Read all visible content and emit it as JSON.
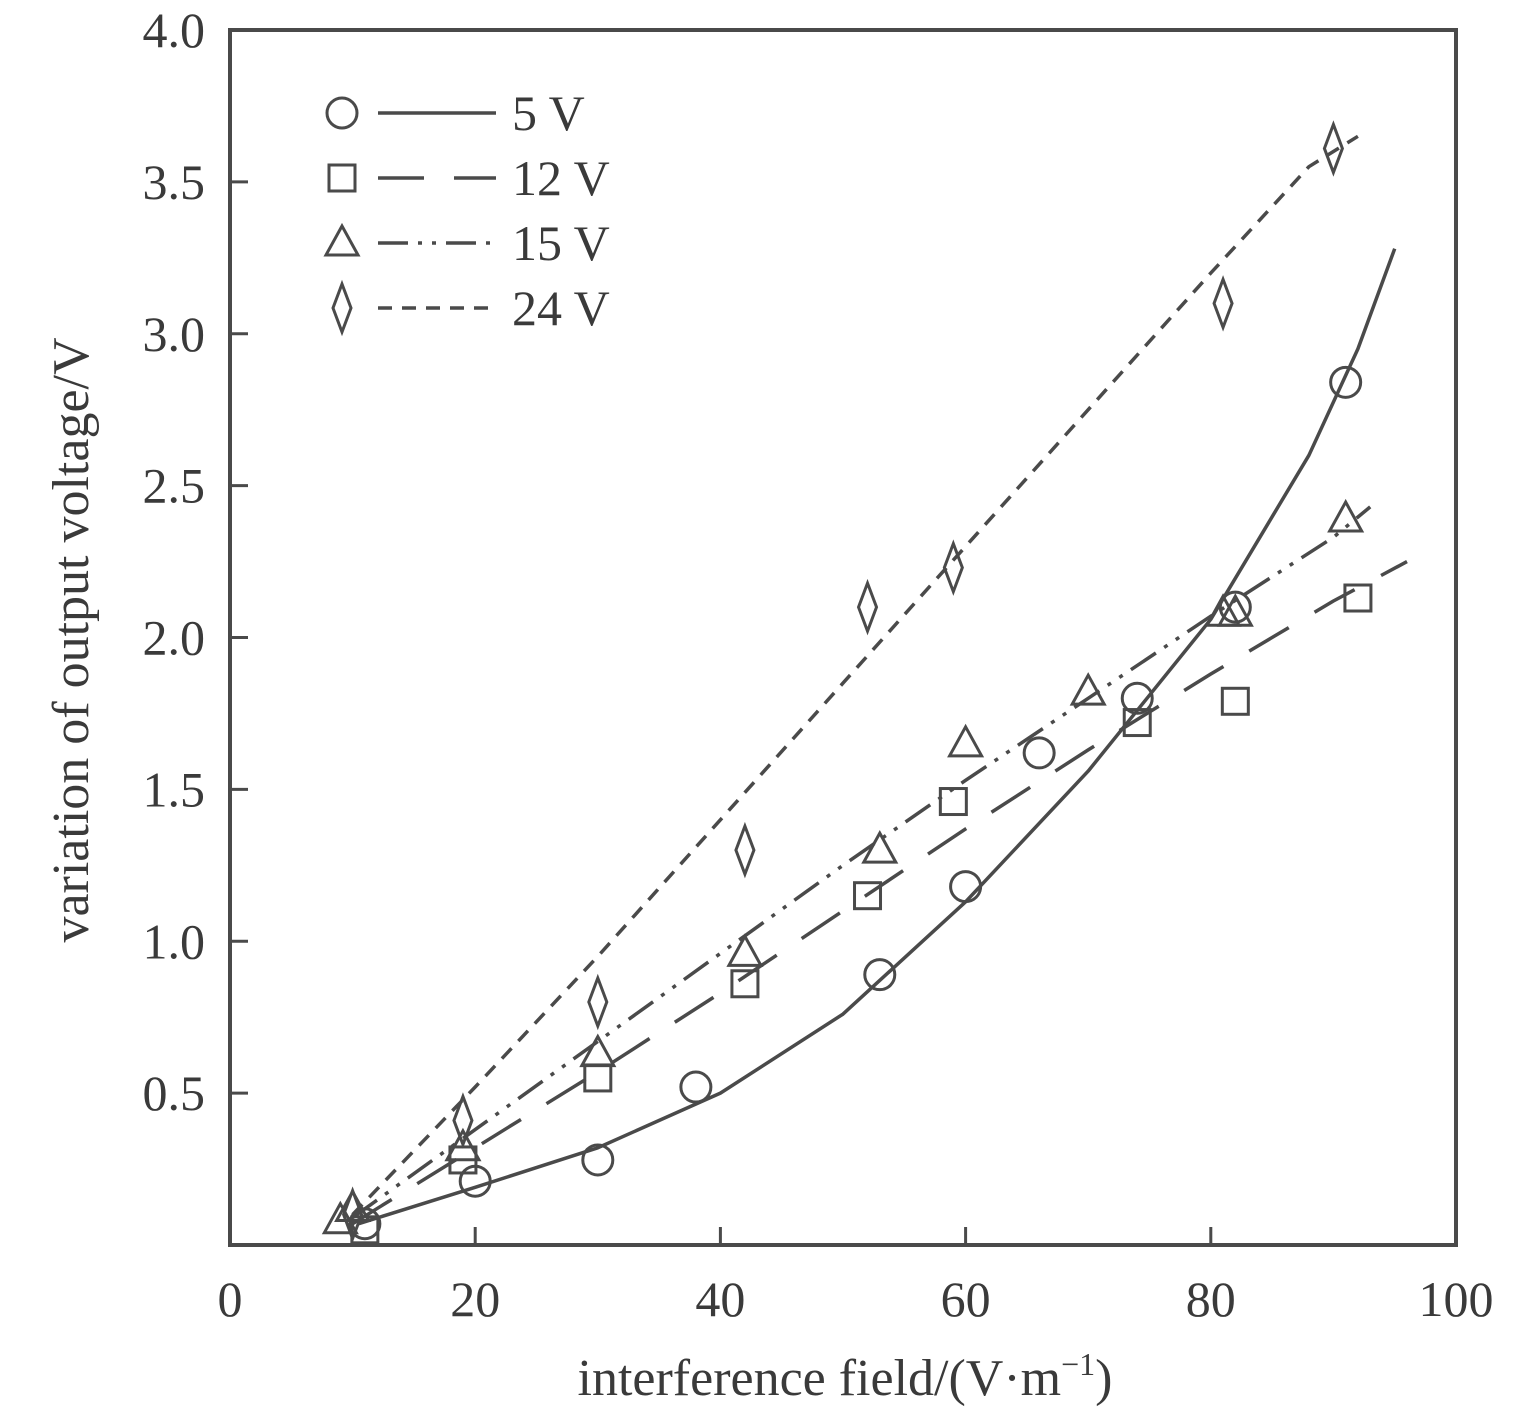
{
  "chart_data": {
    "type": "scatter",
    "xlabel": "interference field/(V·m",
    "xlabel_sup": "−1",
    "xlabel_tail": ")",
    "ylabel": "variation of output voltage/V",
    "xlim": [
      0,
      100
    ],
    "ylim": [
      0,
      4.0
    ],
    "x_ticks": [
      0,
      20,
      40,
      60,
      80,
      100
    ],
    "x_tick_labels": [
      "0",
      "20",
      "40",
      "60",
      "80",
      "100"
    ],
    "y_ticks": [
      0.5,
      1.0,
      1.5,
      2.0,
      2.5,
      3.0,
      3.5,
      4.0
    ],
    "y_tick_labels": [
      "0.5",
      "1.0",
      "1.5",
      "2.0",
      "2.5",
      "3.0",
      "3.5",
      "4.0"
    ],
    "grid": false,
    "legend_position": "top-left",
    "series": [
      {
        "name": "5 V",
        "marker": "circle",
        "line_style": "solid",
        "points": [
          [
            11,
            0.07
          ],
          [
            20,
            0.21
          ],
          [
            30,
            0.28
          ],
          [
            38,
            0.52
          ],
          [
            53,
            0.89
          ],
          [
            60,
            1.18
          ],
          [
            66,
            1.62
          ],
          [
            74,
            1.8
          ],
          [
            82,
            2.1
          ],
          [
            91,
            2.84
          ]
        ],
        "fit": [
          [
            10.5,
            0.07
          ],
          [
            20,
            0.19
          ],
          [
            30,
            0.32
          ],
          [
            40,
            0.5
          ],
          [
            50,
            0.76
          ],
          [
            60,
            1.13
          ],
          [
            70,
            1.56
          ],
          [
            80,
            2.06
          ],
          [
            88,
            2.6
          ],
          [
            92,
            2.95
          ],
          [
            95,
            3.28
          ]
        ]
      },
      {
        "name": "12 V",
        "marker": "square",
        "line_style": "dashed",
        "points": [
          [
            11,
            0.05
          ],
          [
            19,
            0.28
          ],
          [
            30,
            0.55
          ],
          [
            42,
            0.86
          ],
          [
            52,
            1.15
          ],
          [
            59,
            1.46
          ],
          [
            74,
            1.72
          ],
          [
            82,
            1.79
          ],
          [
            92,
            2.13
          ]
        ],
        "fit": [
          [
            10,
            0.07
          ],
          [
            20,
            0.32
          ],
          [
            30,
            0.57
          ],
          [
            40,
            0.83
          ],
          [
            50,
            1.1
          ],
          [
            60,
            1.37
          ],
          [
            70,
            1.63
          ],
          [
            80,
            1.88
          ],
          [
            90,
            2.12
          ],
          [
            96,
            2.25
          ]
        ]
      },
      {
        "name": "15 V",
        "marker": "triangle",
        "line_style": "dashdotdot",
        "points": [
          [
            9,
            0.08
          ],
          [
            10,
            0.12
          ],
          [
            19,
            0.32
          ],
          [
            30,
            0.63
          ],
          [
            42,
            0.96
          ],
          [
            53,
            1.3
          ],
          [
            60,
            1.65
          ],
          [
            70,
            1.82
          ],
          [
            81,
            2.08
          ],
          [
            82,
            2.08
          ],
          [
            91,
            2.39
          ]
        ],
        "fit": [
          [
            10,
            0.09
          ],
          [
            20,
            0.38
          ],
          [
            30,
            0.67
          ],
          [
            40,
            0.96
          ],
          [
            50,
            1.25
          ],
          [
            60,
            1.53
          ],
          [
            70,
            1.8
          ],
          [
            80,
            2.07
          ],
          [
            90,
            2.33
          ],
          [
            93,
            2.43
          ]
        ]
      },
      {
        "name": "24 V",
        "marker": "diamond",
        "line_style": "shortdash",
        "points": [
          [
            10,
            0.1
          ],
          [
            19,
            0.41
          ],
          [
            30,
            0.8
          ],
          [
            42,
            1.3
          ],
          [
            52,
            2.1
          ],
          [
            59,
            2.23
          ],
          [
            81,
            3.1
          ],
          [
            90,
            3.61
          ]
        ],
        "fit": [
          [
            10,
            0.1
          ],
          [
            20,
            0.52
          ],
          [
            30,
            0.95
          ],
          [
            40,
            1.4
          ],
          [
            50,
            1.85
          ],
          [
            60,
            2.3
          ],
          [
            70,
            2.75
          ],
          [
            80,
            3.2
          ],
          [
            88,
            3.55
          ],
          [
            92,
            3.65
          ]
        ]
      }
    ]
  }
}
